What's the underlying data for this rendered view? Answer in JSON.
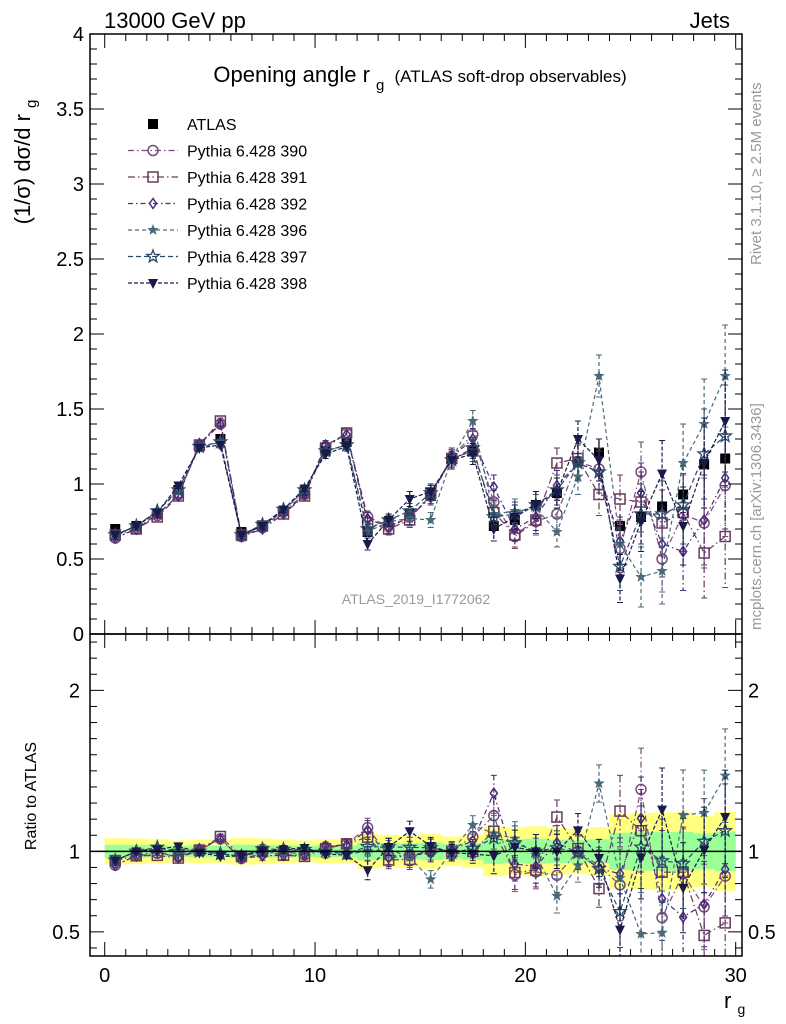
{
  "header": {
    "left": "13000 GeV pp",
    "right": "Jets"
  },
  "side_text": {
    "rivet": "Rivet 3.1.10, ≥ 2.5M events",
    "mcplots": "mcplots.cern.ch [arXiv:1306.3436]"
  },
  "watermark": "ATLAS_2019_I1772062",
  "colors": {
    "band_inner": "#99ff99",
    "band_outer": "#ffff80"
  },
  "chart_data": [
    {
      "type": "scatter",
      "title": "Opening angle r_g (ATLAS soft-drop observables)",
      "title_main": "Opening angle r",
      "title_sub": "g",
      "title_tail": "(ATLAS soft-drop observables)",
      "ylabel": "(1/σ) dσ/d r_g",
      "ylabel_main": "(1/σ) dσ/d r",
      "ylabel_sub": "g",
      "xlim": [
        -0.7,
        30.3
      ],
      "ylim": [
        0,
        4
      ],
      "yticks": [
        0,
        0.5,
        1,
        1.5,
        2,
        2.5,
        3,
        3.5,
        4
      ],
      "ytick_labels": [
        "0",
        "0.5",
        "1",
        "1.5",
        "2",
        "2.5",
        "3",
        "3.5",
        "4"
      ],
      "legend": "top-left",
      "x": [
        0.5,
        1.5,
        2.5,
        3.5,
        4.5,
        5.5,
        6.5,
        7.5,
        8.5,
        9.5,
        10.5,
        11.5,
        12.5,
        13.5,
        14.5,
        15.5,
        16.5,
        17.5,
        18.5,
        19.5,
        20.5,
        21.5,
        22.5,
        23.5,
        24.5,
        25.5,
        26.5,
        27.5,
        28.5,
        29.5
      ],
      "series": [
        {
          "name": "ATLAS",
          "marker": "square-filled",
          "color": "#000000",
          "values": [
            0.7,
            0.72,
            0.8,
            0.96,
            1.25,
            1.3,
            0.68,
            0.72,
            0.82,
            0.95,
            1.22,
            1.28,
            0.68,
            0.74,
            0.8,
            0.92,
            1.17,
            1.22,
            0.72,
            0.76,
            0.86,
            0.94,
            1.15,
            1.21,
            0.72,
            0.78,
            0.85,
            0.93,
            1.13,
            1.17
          ],
          "errors": [
            0.02,
            0.02,
            0.02,
            0.02,
            0.03,
            0.03,
            0.02,
            0.02,
            0.02,
            0.02,
            0.03,
            0.03,
            0.03,
            0.03,
            0.03,
            0.04,
            0.04,
            0.05,
            0.05,
            0.05,
            0.06,
            0.06,
            0.07,
            0.08,
            0.08,
            0.09,
            0.1,
            0.11,
            0.12,
            0.14
          ]
        },
        {
          "name": "Pythia 6.428 390",
          "marker": "circle-open",
          "color": "#7a4b7a",
          "values": [
            0.64,
            0.7,
            0.79,
            0.93,
            1.26,
            1.4,
            0.65,
            0.71,
            0.82,
            0.93,
            1.25,
            1.34,
            0.78,
            0.72,
            0.78,
            0.92,
            1.18,
            1.33,
            0.88,
            0.65,
            0.75,
            0.8,
            1.15,
            1.1,
            0.57,
            1.08,
            0.5,
            0.8,
            0.74,
            0.99
          ],
          "errors": [
            0.01,
            0.01,
            0.01,
            0.02,
            0.02,
            0.02,
            0.01,
            0.02,
            0.02,
            0.02,
            0.03,
            0.03,
            0.04,
            0.04,
            0.05,
            0.05,
            0.06,
            0.07,
            0.08,
            0.08,
            0.09,
            0.1,
            0.12,
            0.14,
            0.16,
            0.2,
            0.22,
            0.26,
            0.3,
            0.34
          ]
        },
        {
          "name": "Pythia 6.428 391",
          "marker": "square-open",
          "color": "#6a3a5a",
          "values": [
            0.66,
            0.7,
            0.78,
            0.92,
            1.26,
            1.42,
            0.66,
            0.72,
            0.8,
            0.92,
            1.24,
            1.34,
            0.74,
            0.7,
            0.76,
            0.94,
            1.17,
            1.22,
            0.81,
            0.66,
            0.76,
            1.14,
            1.17,
            0.93,
            0.9,
            0.88,
            0.74,
            0.81,
            0.54,
            0.65
          ],
          "errors": [
            0.01,
            0.01,
            0.01,
            0.02,
            0.02,
            0.02,
            0.01,
            0.02,
            0.02,
            0.02,
            0.03,
            0.03,
            0.04,
            0.04,
            0.05,
            0.05,
            0.06,
            0.07,
            0.08,
            0.08,
            0.09,
            0.1,
            0.12,
            0.14,
            0.16,
            0.2,
            0.22,
            0.26,
            0.3,
            0.34
          ]
        },
        {
          "name": "Pythia 6.428 392",
          "marker": "diamond-open",
          "color": "#4a2a7a",
          "values": [
            0.64,
            0.7,
            0.8,
            0.92,
            1.27,
            1.4,
            0.65,
            0.7,
            0.8,
            0.93,
            1.26,
            1.33,
            0.77,
            0.71,
            0.78,
            0.91,
            1.18,
            1.3,
            0.98,
            0.7,
            0.78,
            0.99,
            1.14,
            1.08,
            0.62,
            0.94,
            0.6,
            0.55,
            0.76,
            1.04
          ],
          "errors": [
            0.01,
            0.01,
            0.01,
            0.02,
            0.02,
            0.02,
            0.01,
            0.02,
            0.02,
            0.02,
            0.03,
            0.03,
            0.04,
            0.04,
            0.05,
            0.05,
            0.06,
            0.07,
            0.08,
            0.08,
            0.09,
            0.1,
            0.12,
            0.14,
            0.16,
            0.2,
            0.22,
            0.26,
            0.3,
            0.34
          ]
        },
        {
          "name": "Pythia 6.428 396",
          "marker": "star-filled",
          "color": "#4a6a7a",
          "values": [
            0.66,
            0.72,
            0.82,
            0.95,
            1.24,
            1.28,
            0.66,
            0.73,
            0.82,
            0.96,
            1.22,
            1.26,
            0.68,
            0.75,
            0.77,
            0.76,
            1.17,
            1.42,
            0.8,
            0.82,
            0.84,
            0.68,
            1.05,
            1.72,
            0.6,
            0.38,
            0.42,
            1.14,
            1.4,
            1.72
          ],
          "errors": [
            0.01,
            0.01,
            0.01,
            0.02,
            0.02,
            0.02,
            0.01,
            0.02,
            0.02,
            0.02,
            0.03,
            0.03,
            0.04,
            0.04,
            0.05,
            0.05,
            0.06,
            0.07,
            0.08,
            0.08,
            0.09,
            0.1,
            0.12,
            0.14,
            0.16,
            0.2,
            0.22,
            0.26,
            0.3,
            0.34
          ]
        },
        {
          "name": "Pythia 6.428 397",
          "marker": "star-open",
          "color": "#2a4a6a",
          "values": [
            0.66,
            0.72,
            0.82,
            0.96,
            1.25,
            1.28,
            0.66,
            0.73,
            0.83,
            0.96,
            1.22,
            1.26,
            0.7,
            0.76,
            0.82,
            0.94,
            1.16,
            1.24,
            0.78,
            0.8,
            0.86,
            0.96,
            1.14,
            1.08,
            0.45,
            0.8,
            0.8,
            0.86,
            1.2,
            1.32
          ],
          "errors": [
            0.01,
            0.01,
            0.01,
            0.02,
            0.02,
            0.02,
            0.01,
            0.02,
            0.02,
            0.02,
            0.03,
            0.03,
            0.04,
            0.04,
            0.05,
            0.05,
            0.06,
            0.07,
            0.08,
            0.08,
            0.09,
            0.1,
            0.12,
            0.14,
            0.16,
            0.2,
            0.22,
            0.26,
            0.3,
            0.34
          ]
        },
        {
          "name": "Pythia 6.428 398",
          "marker": "triangle-down-filled",
          "color": "#1a1a4a",
          "values": [
            0.66,
            0.72,
            0.81,
            0.99,
            1.24,
            1.26,
            0.66,
            0.72,
            0.83,
            0.97,
            1.2,
            1.25,
            0.6,
            0.76,
            0.9,
            0.95,
            1.16,
            1.2,
            0.7,
            0.78,
            0.86,
            0.94,
            1.3,
            1.16,
            0.37,
            0.75,
            1.07,
            0.72,
            1.14,
            1.42
          ],
          "errors": [
            0.01,
            0.01,
            0.01,
            0.02,
            0.02,
            0.02,
            0.01,
            0.02,
            0.02,
            0.02,
            0.03,
            0.03,
            0.04,
            0.04,
            0.05,
            0.05,
            0.06,
            0.07,
            0.08,
            0.08,
            0.09,
            0.1,
            0.12,
            0.14,
            0.16,
            0.2,
            0.22,
            0.26,
            0.3,
            0.34
          ]
        }
      ]
    },
    {
      "type": "scatter",
      "ylabel": "Ratio to ATLAS",
      "xlabel": "r_g",
      "xlabel_main": "r",
      "xlabel_sub": "g",
      "xlim": [
        -0.7,
        30.3
      ],
      "ylim": [
        0.35,
        2.35
      ],
      "xticks": [
        0,
        10,
        20,
        30
      ],
      "xtick_labels": [
        "0",
        "10",
        "20",
        "30"
      ],
      "yticks": [
        0.5,
        1,
        2
      ],
      "ytick_labels": [
        "0.5",
        "1",
        "2"
      ],
      "reference_line": 1
    }
  ]
}
